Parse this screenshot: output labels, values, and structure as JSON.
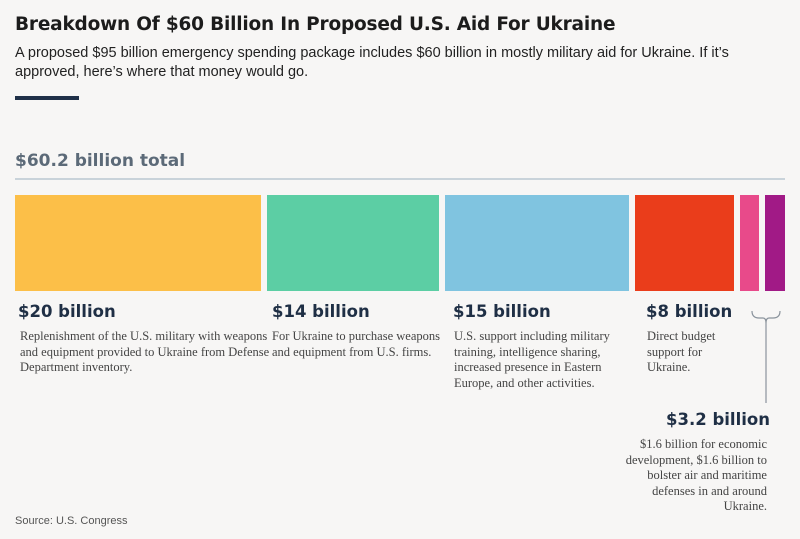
{
  "header": {
    "title": "Breakdown Of $60 Billion In Proposed U.S. Aid For Ukraine",
    "subtitle": "A proposed $95 billion emergency spending package includes $60 billion in mostly military aid for Ukraine. If it’s approved, here’s where that money would go."
  },
  "total_label": "$60.2 billion total",
  "source": "Source: U.S. Congress",
  "colors": {
    "background": "#f7f6f5",
    "yellow": "#fcbf48",
    "green": "#5ccea4",
    "blue": "#80c4e0",
    "red": "#ea3d1b",
    "pink": "#e84a8a",
    "purple": "#a11a86"
  },
  "chart_data": {
    "type": "bar",
    "orientation": "horizontal-stacked",
    "total": 60.2,
    "unit": "billion",
    "segments": [
      {
        "value": 20,
        "label": "$20 billion",
        "description": "Replenishment of the U.S. military with weapons and equipment provided to Ukraine from Defense Department inventory.",
        "color": "#fcbf48"
      },
      {
        "value": 14,
        "label": "$14 billion",
        "description": "For Ukraine to purchase weapons and equipment from U.S. firms.",
        "color": "#5ccea4"
      },
      {
        "value": 15,
        "label": "$15 billion",
        "description": "U.S. support including military training, intelligence sharing, increased presence in Eastern Europe, and other activities.",
        "color": "#80c4e0"
      },
      {
        "value": 8,
        "label": "$8 billion",
        "description": "Direct budget support for Ukraine.",
        "color": "#ea3d1b"
      },
      {
        "value": 1.6,
        "color": "#e84a8a"
      },
      {
        "value": 1.6,
        "color": "#a11a86"
      }
    ],
    "grouped_note": {
      "label": "$3.2 billion",
      "description": "$1.6 billion for economic development, $1.6 billion to bolster air and maritime defenses in and around Ukraine."
    }
  }
}
